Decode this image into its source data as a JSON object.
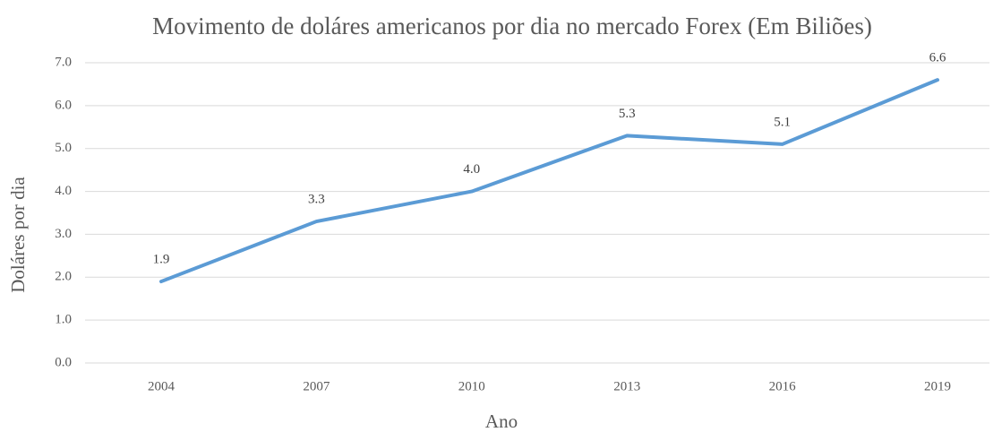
{
  "chart_data": {
    "type": "line",
    "title": "Movimento de doláres americanos por dia no mercado Forex (Em Biliões)",
    "x_label": "Ano",
    "y_label": "Doláres por dia",
    "categories": [
      "2004",
      "2007",
      "2010",
      "2013",
      "2016",
      "2019"
    ],
    "series": [
      {
        "name": "Doláres por dia",
        "color": "#5b9bd5",
        "values": [
          1.9,
          3.3,
          4.0,
          5.3,
          5.1,
          6.6
        ],
        "value_labels": [
          "1.9",
          "3.3",
          "4.0",
          "5.3",
          "5.1",
          "6.6"
        ]
      }
    ],
    "ylim": [
      0,
      7
    ],
    "yticks": [
      {
        "value": 0,
        "label": "0.0"
      },
      {
        "value": 1,
        "label": "1.0"
      },
      {
        "value": 2,
        "label": "2.0"
      },
      {
        "value": 3,
        "label": "3.0"
      },
      {
        "value": 4,
        "label": "4.0"
      },
      {
        "value": 5,
        "label": "5.0"
      },
      {
        "value": 6,
        "label": "6.0"
      },
      {
        "value": 7,
        "label": "7.0"
      }
    ],
    "grid": true
  }
}
